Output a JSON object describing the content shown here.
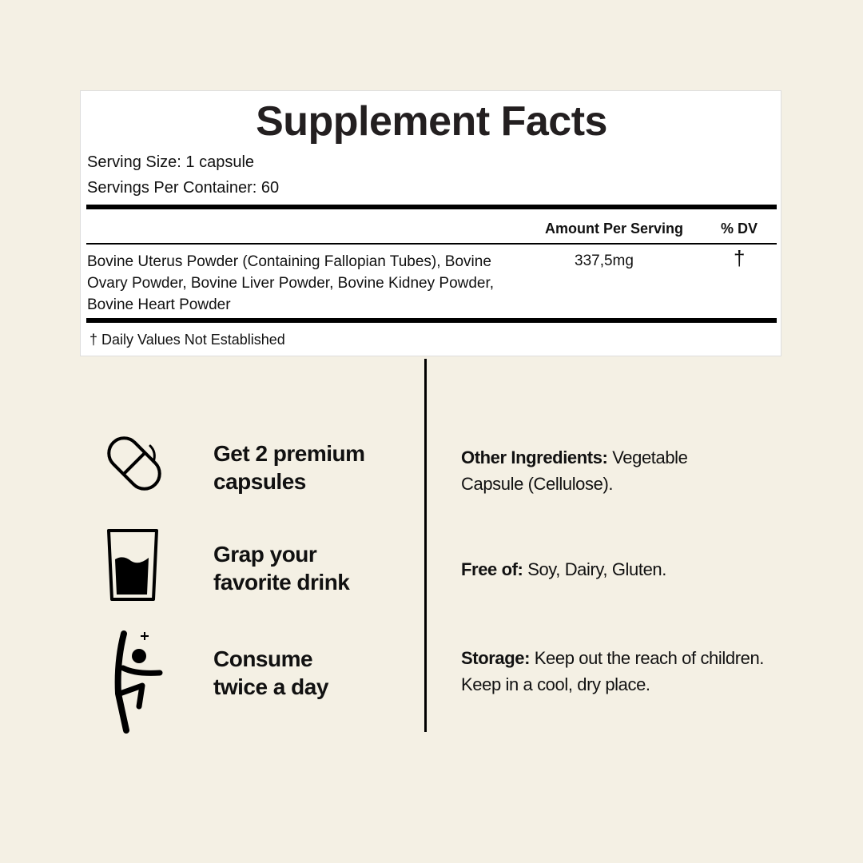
{
  "facts": {
    "title": "Supplement Facts",
    "serving_size": "Serving Size: 1 capsule",
    "servings_per_container": "Servings Per Container: 60",
    "col_amount": "Amount Per Serving",
    "col_dv": "% DV",
    "ingredient": "Bovine Uterus Powder (Containing Fallopian Tubes), Bovine Ovary Powder, Bovine Liver Powder, Bovine Kidney Powder, Bovine Heart Powder",
    "amount": "337,5mg",
    "dv": "†",
    "footnote": "† Daily Values Not Established"
  },
  "steps": [
    {
      "icon": "capsule-icon",
      "line1": "Get 2 premium",
      "line2": "capsules"
    },
    {
      "icon": "glass-icon",
      "line1": "Grap your",
      "line2": "favorite drink"
    },
    {
      "icon": "person-icon",
      "line1": "Consume",
      "line2": "twice a day"
    }
  ],
  "info": [
    {
      "label": "Other Ingredients:",
      "text": " Vegetable Capsule (Cellulose)."
    },
    {
      "label": "Free of:",
      "text": " Soy, Dairy, Gluten."
    },
    {
      "label": "Storage:",
      "text": " Keep out the reach of children. Keep in a cool, dry place."
    }
  ]
}
